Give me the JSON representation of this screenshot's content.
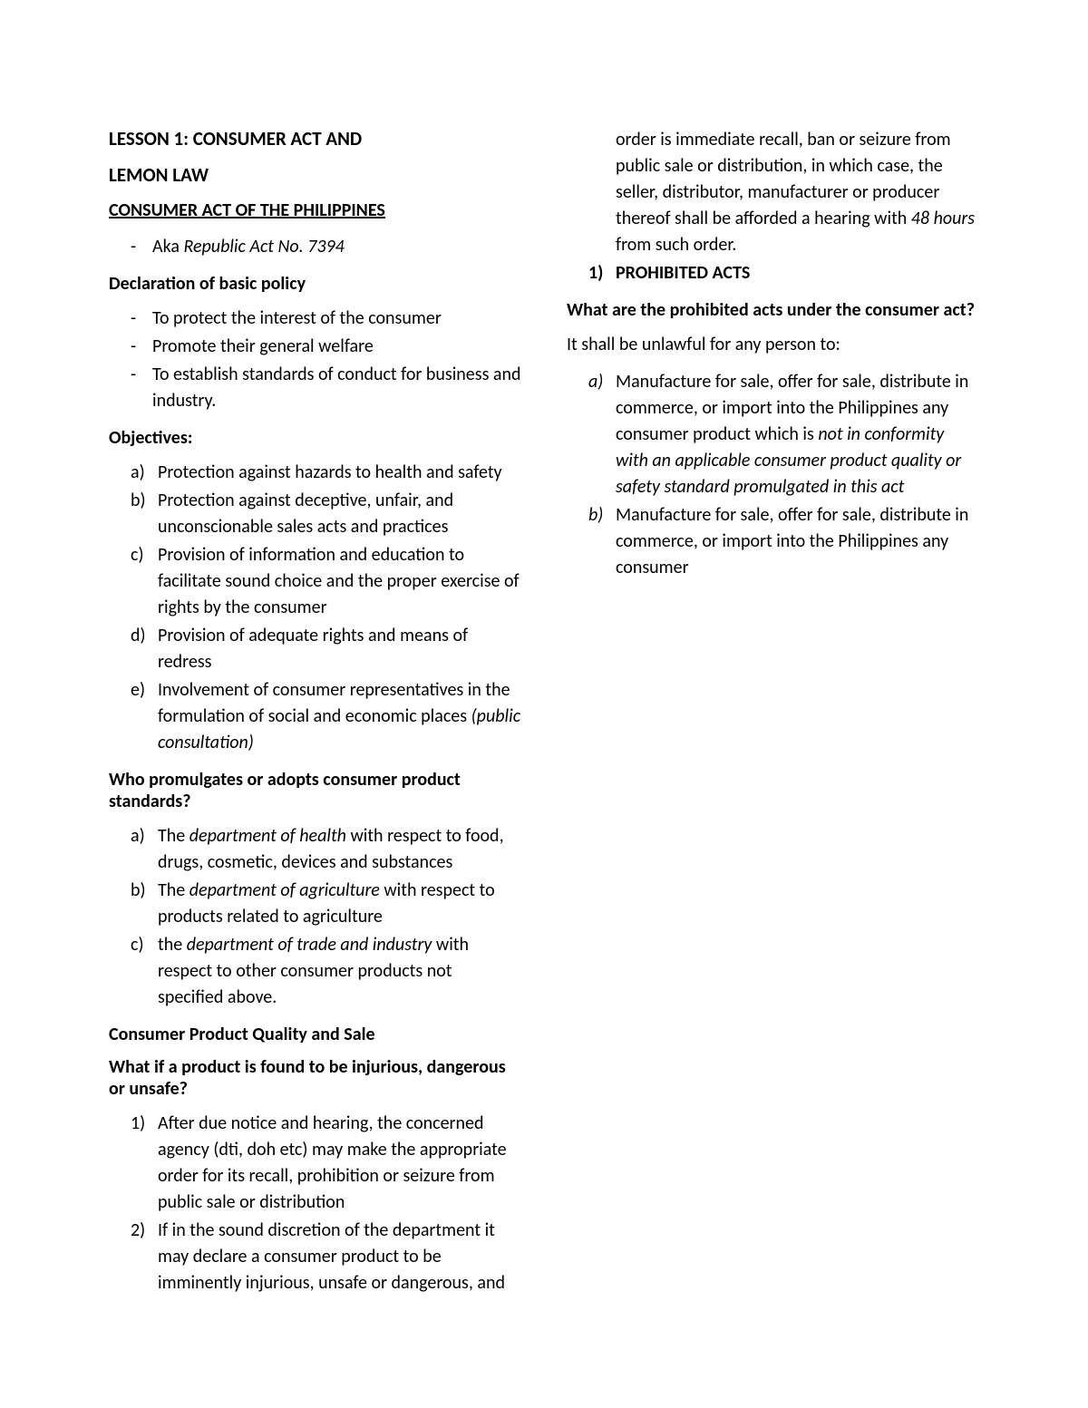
{
  "title1": "LESSON 1: CONSUMER ACT AND",
  "title2": "LEMON LAW",
  "section1_heading": "CONSUMER ACT OF THE PHILIPPINES",
  "aka_prefix": "Aka ",
  "aka_italic": "Republic Act No. 7394",
  "declaration_heading": "Declaration of basic policy",
  "declaration_items": [
    "To protect the interest of the consumer",
    "Promote their general welfare",
    "To establish standards of conduct for business and industry."
  ],
  "objectives_heading": "Objectives:",
  "objectives": [
    {
      "m": "a)",
      "t": "Protection against hazards to health and safety"
    },
    {
      "m": "b)",
      "t": "Protection against deceptive, unfair, and unconscionable sales acts and practices"
    },
    {
      "m": "c)",
      "t": "Provision of information and education to facilitate sound choice and the proper exercise of rights by the consumer"
    },
    {
      "m": "d)",
      "t": "Provision of adequate rights and means of redress"
    },
    {
      "m": "e)",
      "t": "Involvement of consumer representatives in the formulation of social and economic places ",
      "it": "(public consultation)"
    }
  ],
  "who_heading": "Who promulgates or adopts consumer product standards?",
  "who_items": [
    {
      "m": "a)",
      "pre": "The ",
      "it": "department of health",
      "post": " with respect to food, drugs, cosmetic, devices and substances"
    },
    {
      "m": "b)",
      "pre": "The ",
      "it": "department of agriculture",
      "post": " with respect to products related to agriculture"
    },
    {
      "m": "c)",
      "pre": "the ",
      "it": "department of trade and industry",
      "post": " with respect to other consumer products not specified above."
    }
  ],
  "cpqs_heading": "Consumer Product Quality and Sale",
  "whatif_heading": "What if a product is found to be injurious, dangerous or unsafe?",
  "whatif_items": [
    {
      "m": "1)",
      "t": "After due notice and hearing, the concerned agency (dti, doh etc) may make the appropriate order for its recall, prohibition or seizure from public sale or distribution"
    },
    {
      "m": "2)",
      "pre": "If in the sound discretion of the department it may declare a consumer product to be imminently injurious, unsafe or dangerous, and order is immediate recall, ban or seizure from public sale or distribution, in which case, the seller, distributor, manufacturer or producer thereof shall be afforded a hearing with ",
      "it": "48 hours",
      "post": " from such order."
    },
    {
      "m": "1)",
      "bold": true,
      "tb": "PROHIBITED ACTS"
    }
  ],
  "prohibited_heading": "What are the prohibited acts under the consumer act?",
  "prohibited_intro": "It shall be unlawful for any person to:",
  "prohibited_items": [
    {
      "m": "a)",
      "mi": true,
      "pre": "Manufacture for sale, offer for sale, distribute in commerce, or import into the Philippines any consumer product which is ",
      "it": "not in conformity with an applicable consumer product quality or safety standard promulgated in this act"
    },
    {
      "m": "b)",
      "mi": true,
      "t": "Manufacture for sale, offer for sale, distribute in commerce, or import into the Philippines any consumer"
    }
  ]
}
